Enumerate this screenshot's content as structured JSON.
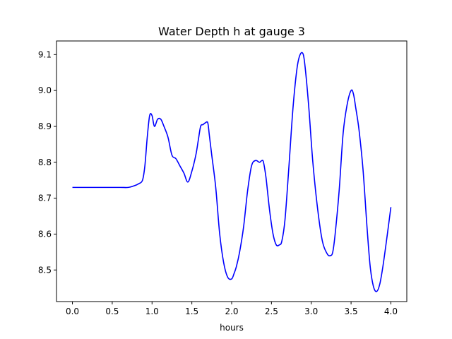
{
  "chart_data": {
    "type": "line",
    "title": "Water Depth h at gauge 3",
    "xlabel": "hours",
    "ylabel": "",
    "xlim": [
      -0.2,
      4.2
    ],
    "ylim": [
      8.412,
      9.138
    ],
    "grid": false,
    "line_color": "#0000ff",
    "xticks": [
      0.0,
      0.5,
      1.0,
      1.5,
      2.0,
      2.5,
      3.0,
      3.5,
      4.0
    ],
    "xtick_labels": [
      "0.0",
      "0.5",
      "1.0",
      "1.5",
      "2.0",
      "2.5",
      "3.0",
      "3.5",
      "4.0"
    ],
    "yticks": [
      8.5,
      8.6,
      8.7,
      8.8,
      8.9,
      9.0,
      9.1
    ],
    "ytick_labels": [
      "8.5",
      "8.6",
      "8.7",
      "8.8",
      "8.9",
      "9.0",
      "9.1"
    ],
    "series": [
      {
        "x": [
          0.0,
          0.2,
          0.4,
          0.6,
          0.7,
          0.78,
          0.83,
          0.88,
          0.91,
          0.94,
          0.97,
          1.0,
          1.03,
          1.07,
          1.11,
          1.15,
          1.2,
          1.25,
          1.3,
          1.35,
          1.4,
          1.45,
          1.5,
          1.55,
          1.58,
          1.61,
          1.64,
          1.67,
          1.7,
          1.72,
          1.75,
          1.8,
          1.85,
          1.9,
          1.95,
          2.0,
          2.03,
          2.06,
          2.1,
          2.15,
          2.2,
          2.25,
          2.3,
          2.35,
          2.38,
          2.4,
          2.43,
          2.45,
          2.48,
          2.52,
          2.56,
          2.6,
          2.63,
          2.67,
          2.72,
          2.77,
          2.82,
          2.86,
          2.9,
          2.93,
          2.97,
          3.02,
          3.08,
          3.14,
          3.2,
          3.24,
          3.27,
          3.3,
          3.35,
          3.4,
          3.45,
          3.5,
          3.53,
          3.56,
          3.6,
          3.65,
          3.7,
          3.74,
          3.78,
          3.82,
          3.86,
          3.9,
          3.95,
          4.0
        ],
        "y": [
          8.73,
          8.73,
          8.73,
          8.73,
          8.73,
          8.735,
          8.74,
          8.75,
          8.79,
          8.87,
          8.93,
          8.93,
          8.9,
          8.92,
          8.92,
          8.9,
          8.87,
          8.82,
          8.81,
          8.79,
          8.77,
          8.745,
          8.775,
          8.82,
          8.86,
          8.9,
          8.905,
          8.91,
          8.91,
          8.875,
          8.82,
          8.73,
          8.6,
          8.52,
          8.48,
          8.475,
          8.49,
          8.51,
          8.55,
          8.62,
          8.72,
          8.79,
          8.805,
          8.8,
          8.805,
          8.8,
          8.76,
          8.72,
          8.66,
          8.6,
          8.57,
          8.57,
          8.58,
          8.64,
          8.79,
          8.95,
          9.06,
          9.1,
          9.1,
          9.05,
          8.95,
          8.8,
          8.67,
          8.58,
          8.545,
          8.54,
          8.55,
          8.6,
          8.72,
          8.88,
          8.96,
          9.0,
          8.99,
          8.95,
          8.89,
          8.78,
          8.62,
          8.51,
          8.455,
          8.44,
          8.46,
          8.51,
          8.59,
          8.675
        ]
      }
    ]
  }
}
